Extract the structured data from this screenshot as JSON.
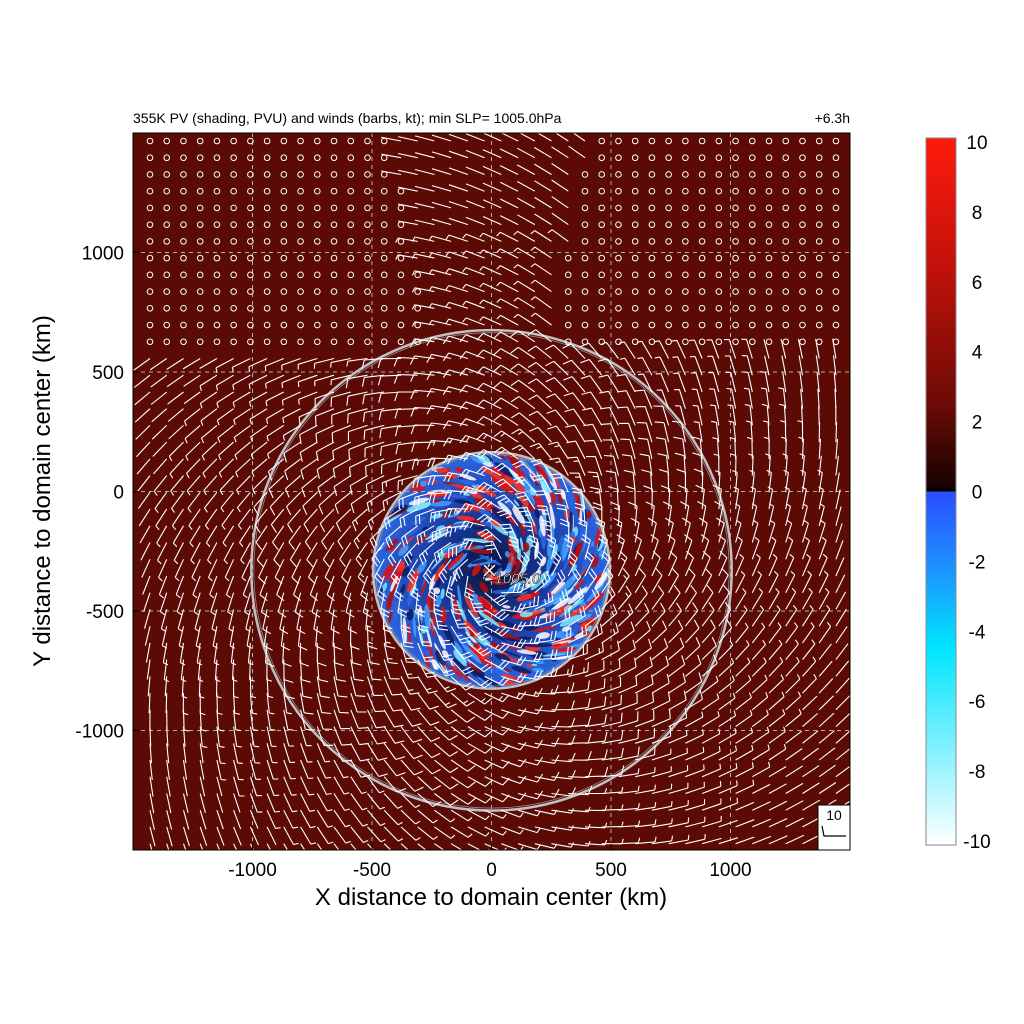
{
  "chart_data": {
    "type": "heatmap",
    "title": "355K PV (shading, PVU) and winds (barbs, kt); min SLP= 1005.0hPa",
    "time_label": "+6.3h",
    "xlabel": "X distance to domain center (km)",
    "ylabel": "Y distance to domain center (km)",
    "xlim": [
      -1500,
      1500
    ],
    "ylim": [
      -1500,
      1500
    ],
    "x_ticks": [
      -1000,
      -500,
      0,
      500,
      1000
    ],
    "y_ticks": [
      1000,
      500,
      0,
      -500,
      -1000
    ],
    "grid": true,
    "field": "355K PV (PVU)",
    "background_pv": 2.5,
    "colorbar": {
      "vmin": -10,
      "vmax": 10,
      "ticks": [
        10,
        8,
        6,
        4,
        2,
        0,
        -2,
        -4,
        -6,
        -8,
        -10
      ],
      "colors": {
        "pos_top": "#ff1a0d",
        "pos_mid": "#8c0d06",
        "pos_low": "#3a0602",
        "zero": "#000000",
        "neg_low": "#2b4dff",
        "neg_mid": "#00e5ff",
        "neg_top": "#ffffff"
      }
    },
    "storm_center_km": [
      0,
      -330
    ],
    "min_slp_label": "1005.0",
    "rings_km": [
      {
        "radius": 495
      },
      {
        "radius": 1005
      }
    ],
    "barb_spacing_km": 70,
    "barb_reference": {
      "label": "10",
      "speed_kt": 10
    },
    "colors": {
      "background": "#5c0a05",
      "barb": "#ffffff",
      "ring": "#c0c0c0",
      "grid": "#b0b0b0"
    }
  }
}
